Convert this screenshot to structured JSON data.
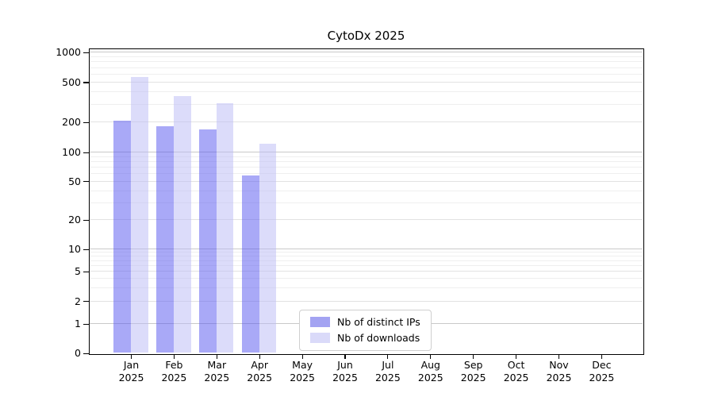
{
  "figure": {
    "background": "#ffffff",
    "title": "CytoDx 2025"
  },
  "chart_data": {
    "type": "bar",
    "title": "CytoDx 2025",
    "categories": [
      "Jan 2025",
      "Feb 2025",
      "Mar 2025",
      "Apr 2025",
      "May 2025",
      "Jun 2025",
      "Jul 2025",
      "Aug 2025",
      "Sep 2025",
      "Oct 2025",
      "Nov 2025",
      "Dec 2025"
    ],
    "x_tick_months": [
      "Jan",
      "Feb",
      "Mar",
      "Apr",
      "May",
      "Jun",
      "Jul",
      "Aug",
      "Sep",
      "Oct",
      "Nov",
      "Dec"
    ],
    "x_tick_year": "2025",
    "series": [
      {
        "name": "Nb of distinct IPs",
        "values": [
          205,
          180,
          167,
          57,
          null,
          null,
          null,
          null,
          null,
          null,
          null,
          null
        ],
        "fill": "rgba(83,83,239,0.5)",
        "legend_swatch": "#a3a3f2"
      },
      {
        "name": "Nb of downloads",
        "values": [
          560,
          360,
          310,
          122,
          null,
          null,
          null,
          null,
          null,
          null,
          null,
          null
        ],
        "fill": "rgba(185,185,245,0.5)",
        "legend_swatch": "#dadaf9"
      }
    ],
    "yscale": "log-like (0 pinned at baseline)",
    "yticks": [
      0,
      1,
      2,
      5,
      10,
      20,
      50,
      100,
      200,
      500,
      1000
    ],
    "ylim": [
      0,
      1080
    ],
    "xlabel": "",
    "ylabel": "",
    "grid": true,
    "grid_minor_values": [
      3,
      4,
      6,
      7,
      8,
      9,
      30,
      40,
      60,
      70,
      80,
      90,
      300,
      400,
      600,
      700,
      800,
      900
    ],
    "grid_decade_values": [
      1,
      10,
      100,
      1000
    ],
    "legend_position": "inside lower-center-left"
  },
  "colors": {
    "bar_ips_rendered": "#a9a9f7",
    "bar_downloads_rendered": "#dcdcfa",
    "grid_decade": "#c9c9c9",
    "grid_major": "#e2e2e2",
    "grid_minor": "#efefef",
    "spine": "#000000",
    "legend_border": "#cfcfcf"
  }
}
